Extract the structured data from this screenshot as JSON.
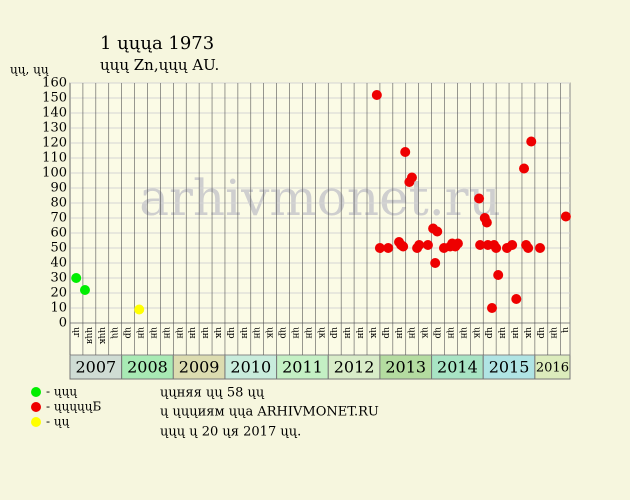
{
  "chart_data": {
    "type": "scatter",
    "title": "1 ųųųa 1973",
    "subtitle": "ųųų Zn,ųųų AU.",
    "y_label": "ųų, ųų",
    "watermark": "arhivmonet.ru",
    "notes": [
      "ųųняя ųų 58 ųų",
      "ų ųųųиям ųųа ARHIVMONET.RU",
      "ųųų ų 20 ųя 2017 ųų."
    ],
    "ylim": [
      0,
      160
    ],
    "yticks": [
      0,
      10,
      20,
      30,
      40,
      50,
      60,
      70,
      80,
      90,
      100,
      110,
      120,
      130,
      140,
      150,
      160
    ],
    "xlim": [
      2007,
      2016.68
    ],
    "xticks": [
      {
        "value": 2007,
        "label": "ųг"
      },
      {
        "value": 2007.25,
        "label": "ųųя"
      },
      {
        "value": 2007.5,
        "label": "ųųк"
      },
      {
        "value": 2007.75,
        "label": "ųų"
      },
      {
        "value": 2008,
        "label": "ųр"
      },
      {
        "value": 2008.25,
        "label": "ųн"
      },
      {
        "value": 2008.5,
        "label": "ųн"
      },
      {
        "value": 2008.75,
        "label": "ųн"
      },
      {
        "value": 2009,
        "label": "ųн"
      },
      {
        "value": 2009.25,
        "label": "ųн"
      },
      {
        "value": 2009.5,
        "label": "ųн"
      },
      {
        "value": 2009.75,
        "label": "ųк"
      },
      {
        "value": 2010,
        "label": "ųр"
      },
      {
        "value": 2010.25,
        "label": "ųн"
      },
      {
        "value": 2010.5,
        "label": "ųн"
      },
      {
        "value": 2010.75,
        "label": "ųк"
      },
      {
        "value": 2011,
        "label": "ųр"
      },
      {
        "value": 2011.25,
        "label": "ųн"
      },
      {
        "value": 2011.5,
        "label": "ųн"
      },
      {
        "value": 2011.75,
        "label": "ųк"
      },
      {
        "value": 2012,
        "label": "ųр"
      },
      {
        "value": 2012.25,
        "label": "ųн"
      },
      {
        "value": 2012.5,
        "label": "ųн"
      },
      {
        "value": 2012.75,
        "label": "ųк"
      },
      {
        "value": 2013,
        "label": "ųр"
      },
      {
        "value": 2013.25,
        "label": "ųн"
      },
      {
        "value": 2013.5,
        "label": "ųн"
      },
      {
        "value": 2013.75,
        "label": "ųк"
      },
      {
        "value": 2014,
        "label": "ųр"
      },
      {
        "value": 2014.25,
        "label": "ųн"
      },
      {
        "value": 2014.5,
        "label": "ųн"
      },
      {
        "value": 2014.75,
        "label": "ųк"
      },
      {
        "value": 2015,
        "label": "ųр"
      },
      {
        "value": 2015.25,
        "label": "ųн"
      },
      {
        "value": 2015.5,
        "label": "ųн"
      },
      {
        "value": 2015.75,
        "label": "ųк"
      },
      {
        "value": 2016,
        "label": "ųр"
      },
      {
        "value": 2016.25,
        "label": "ųн"
      },
      {
        "value": 2016.5,
        "label": "ų"
      }
    ],
    "years": [
      "2007",
      "2008",
      "2009",
      "2010",
      "2011",
      "2012",
      "2013",
      "2014",
      "2015",
      "2016"
    ],
    "year_colors": [
      "#cfdcd4",
      "#a8eab4",
      "#dcdcb0",
      "#c8ecdc",
      "#c4f0c4",
      "#d8ecc8",
      "#b4dca0",
      "#a8e4c4",
      "#b0e4e4",
      "#dcecbc"
    ],
    "grid": true,
    "series": [
      {
        "name": "- ųųų",
        "color": "#00ee00",
        "x": [
          2007.12,
          2007.29
        ],
        "values": [
          30,
          22
        ]
      },
      {
        "name": "- ųųųųųБ",
        "color": "#ee0000",
        "x": [
          2012.94,
          2013.0,
          2013.16,
          2013.37,
          2013.41,
          2013.45,
          2013.49,
          2013.57,
          2013.62,
          2013.72,
          2013.76,
          2013.93,
          2014.03,
          2014.07,
          2014.11,
          2014.24,
          2014.36,
          2014.4,
          2014.46,
          2014.51,
          2014.92,
          2014.94,
          2015.03,
          2015.07,
          2015.09,
          2015.17,
          2015.21,
          2015.25,
          2015.29,
          2015.46,
          2015.56,
          2015.64,
          2015.79,
          2015.83,
          2015.87,
          2015.93,
          2016.1,
          2016.6
        ],
        "values": [
          152,
          50,
          50,
          54,
          52,
          51,
          114,
          94,
          97,
          50,
          52,
          52,
          63,
          40,
          61,
          50,
          51,
          53,
          51,
          53,
          83,
          52,
          70,
          67,
          52,
          10,
          52,
          50,
          32,
          50,
          52,
          16,
          103,
          52,
          50,
          121,
          50,
          71
        ]
      },
      {
        "name": "- ųų",
        "color": "#ffff00",
        "x": [
          2008.34
        ],
        "values": [
          9
        ]
      }
    ]
  }
}
